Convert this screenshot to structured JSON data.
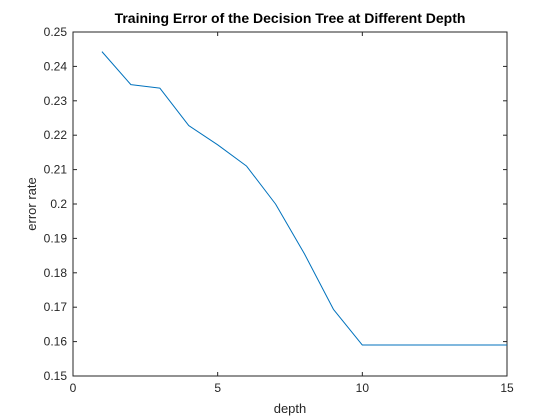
{
  "chart_data": {
    "type": "line",
    "title": "Training Error of the Decision Tree at Different Depth",
    "xlabel": "depth",
    "ylabel": "error rate",
    "xlim": [
      0,
      15
    ],
    "ylim": [
      0.15,
      0.25
    ],
    "xticks": [
      0,
      5,
      10,
      15
    ],
    "yticks": [
      0.15,
      0.16,
      0.17,
      0.18,
      0.19,
      0.2,
      0.21,
      0.22,
      0.23,
      0.24,
      0.25
    ],
    "grid": false,
    "series": [
      {
        "color": "#0072BD",
        "x": [
          1,
          2,
          3,
          4,
          5,
          6,
          7,
          8,
          9,
          10,
          11,
          12,
          13,
          14,
          15
        ],
        "y": [
          0.2443,
          0.2347,
          0.2337,
          0.2228,
          0.2172,
          0.211,
          0.2,
          0.1855,
          0.1694,
          0.159,
          0.159,
          0.159,
          0.159,
          0.159,
          0.159
        ]
      }
    ]
  }
}
